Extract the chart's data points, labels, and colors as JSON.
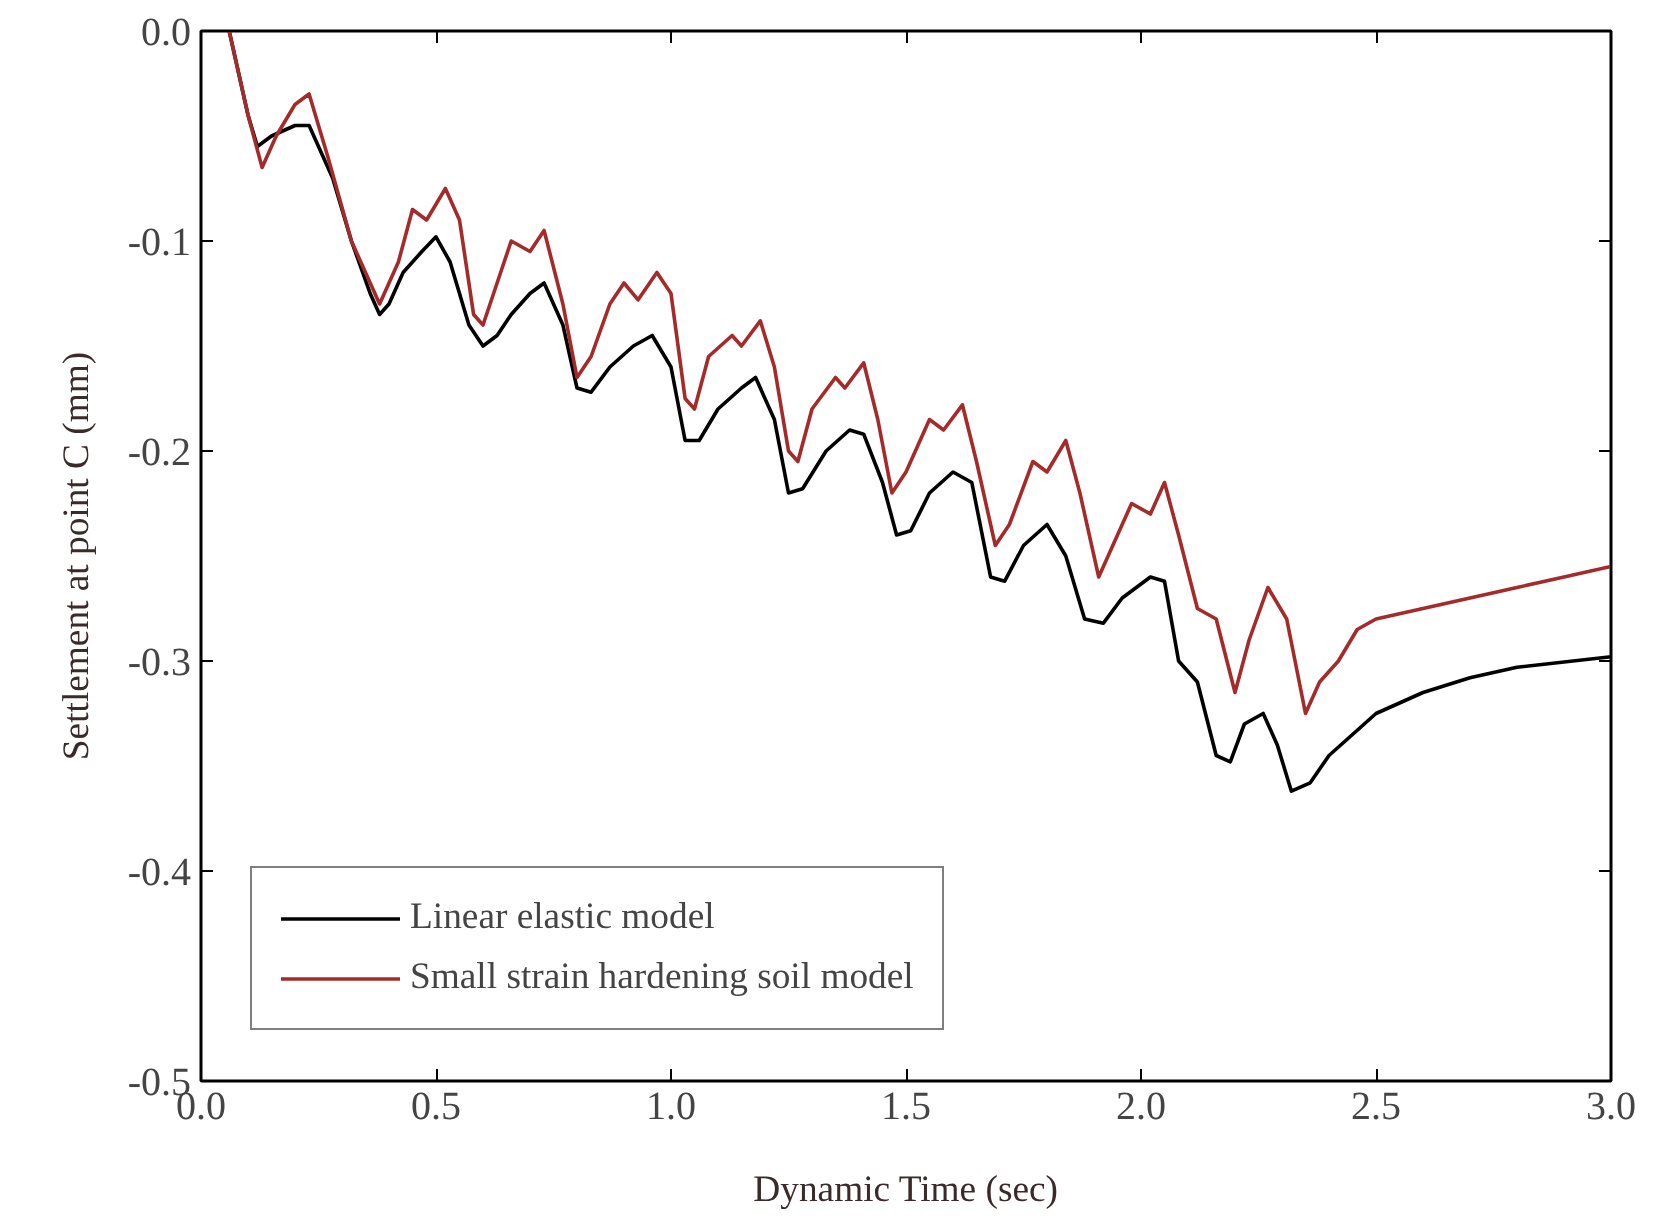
{
  "chart_data": {
    "type": "line",
    "xlabel": "Dynamic Time (sec)",
    "ylabel": "Settlement at point C (mm)",
    "xlim": [
      0.0,
      3.0
    ],
    "ylim": [
      -0.5,
      0.0
    ],
    "xticks": [
      {
        "value": 0,
        "label": "0.0"
      },
      0.5,
      {
        "value": 1,
        "label": "1.0"
      },
      1.5,
      {
        "value": 2,
        "label": "2.0"
      },
      2.5,
      {
        "value": 3,
        "label": "3.0"
      }
    ],
    "yticks": [
      {
        "value": -0.5,
        "label": "-0.5"
      },
      {
        "value": -0.4,
        "label": "-0.4"
      },
      {
        "value": -0.3,
        "label": "-0.3"
      },
      {
        "value": -0.2,
        "label": "-0.2"
      },
      {
        "value": -0.1,
        "label": "-0.1"
      },
      {
        "value": 0,
        "label": "0.0"
      }
    ],
    "grid": false,
    "legend": "bottom left",
    "line_style": "solid",
    "series": [
      {
        "name": "Linear elastic model",
        "color": "#000000",
        "x": [
          0.06,
          0.1,
          0.12,
          0.15,
          0.2,
          0.23,
          0.28,
          0.32,
          0.36,
          0.38,
          0.4,
          0.43,
          0.47,
          0.5,
          0.53,
          0.57,
          0.6,
          0.63,
          0.66,
          0.7,
          0.73,
          0.77,
          0.8,
          0.83,
          0.87,
          0.92,
          0.96,
          1.0,
          1.03,
          1.06,
          1.1,
          1.15,
          1.18,
          1.22,
          1.25,
          1.28,
          1.33,
          1.38,
          1.41,
          1.45,
          1.48,
          1.51,
          1.55,
          1.6,
          1.64,
          1.68,
          1.71,
          1.75,
          1.8,
          1.84,
          1.88,
          1.92,
          1.96,
          2.02,
          2.05,
          2.08,
          2.12,
          2.16,
          2.19,
          2.22,
          2.26,
          2.29,
          2.32,
          2.36,
          2.4,
          2.5,
          2.6,
          2.7,
          2.8,
          3.0
        ],
        "values": [
          0,
          -0.04,
          -0.055,
          -0.05,
          -0.045,
          -0.045,
          -0.07,
          -0.1,
          -0.125,
          -0.135,
          -0.13,
          -0.115,
          -0.105,
          -0.098,
          -0.11,
          -0.14,
          -0.15,
          -0.145,
          -0.135,
          -0.125,
          -0.12,
          -0.14,
          -0.17,
          -0.172,
          -0.16,
          -0.15,
          -0.145,
          -0.16,
          -0.195,
          -0.195,
          -0.18,
          -0.17,
          -0.165,
          -0.185,
          -0.22,
          -0.218,
          -0.2,
          -0.19,
          -0.192,
          -0.215,
          -0.24,
          -0.238,
          -0.22,
          -0.21,
          -0.215,
          -0.26,
          -0.262,
          -0.245,
          -0.235,
          -0.25,
          -0.28,
          -0.282,
          -0.27,
          -0.26,
          -0.262,
          -0.3,
          -0.31,
          -0.345,
          -0.348,
          -0.33,
          -0.325,
          -0.34,
          -0.362,
          -0.358,
          -0.345,
          -0.325,
          -0.315,
          -0.308,
          -0.303,
          -0.298
        ]
      },
      {
        "name": "Small strain hardening soil model",
        "color": "#a52a2a",
        "x": [
          0.06,
          0.1,
          0.13,
          0.16,
          0.2,
          0.23,
          0.27,
          0.32,
          0.36,
          0.38,
          0.42,
          0.45,
          0.48,
          0.52,
          0.55,
          0.58,
          0.6,
          0.63,
          0.66,
          0.7,
          0.73,
          0.77,
          0.8,
          0.83,
          0.87,
          0.9,
          0.93,
          0.97,
          1.0,
          1.03,
          1.05,
          1.08,
          1.13,
          1.15,
          1.19,
          1.22,
          1.25,
          1.27,
          1.3,
          1.35,
          1.37,
          1.41,
          1.44,
          1.47,
          1.5,
          1.55,
          1.58,
          1.62,
          1.65,
          1.69,
          1.72,
          1.77,
          1.8,
          1.84,
          1.87,
          1.91,
          1.94,
          1.98,
          2.02,
          2.05,
          2.08,
          2.12,
          2.16,
          2.2,
          2.23,
          2.27,
          2.31,
          2.35,
          2.38,
          2.42,
          2.46,
          2.5,
          2.6,
          2.7,
          2.8,
          2.9,
          3.0
        ],
        "values": [
          0,
          -0.04,
          -0.065,
          -0.05,
          -0.035,
          -0.03,
          -0.06,
          -0.1,
          -0.12,
          -0.13,
          -0.11,
          -0.085,
          -0.09,
          -0.075,
          -0.09,
          -0.135,
          -0.14,
          -0.12,
          -0.1,
          -0.105,
          -0.095,
          -0.13,
          -0.165,
          -0.155,
          -0.13,
          -0.12,
          -0.128,
          -0.115,
          -0.125,
          -0.175,
          -0.18,
          -0.155,
          -0.145,
          -0.15,
          -0.138,
          -0.16,
          -0.2,
          -0.205,
          -0.18,
          -0.165,
          -0.17,
          -0.158,
          -0.185,
          -0.22,
          -0.21,
          -0.185,
          -0.19,
          -0.178,
          -0.205,
          -0.245,
          -0.235,
          -0.205,
          -0.21,
          -0.195,
          -0.22,
          -0.26,
          -0.245,
          -0.225,
          -0.23,
          -0.215,
          -0.24,
          -0.275,
          -0.28,
          -0.315,
          -0.29,
          -0.265,
          -0.28,
          -0.325,
          -0.31,
          -0.3,
          -0.285,
          -0.28,
          -0.275,
          -0.27,
          -0.265,
          -0.26,
          -0.255
        ]
      }
    ]
  }
}
